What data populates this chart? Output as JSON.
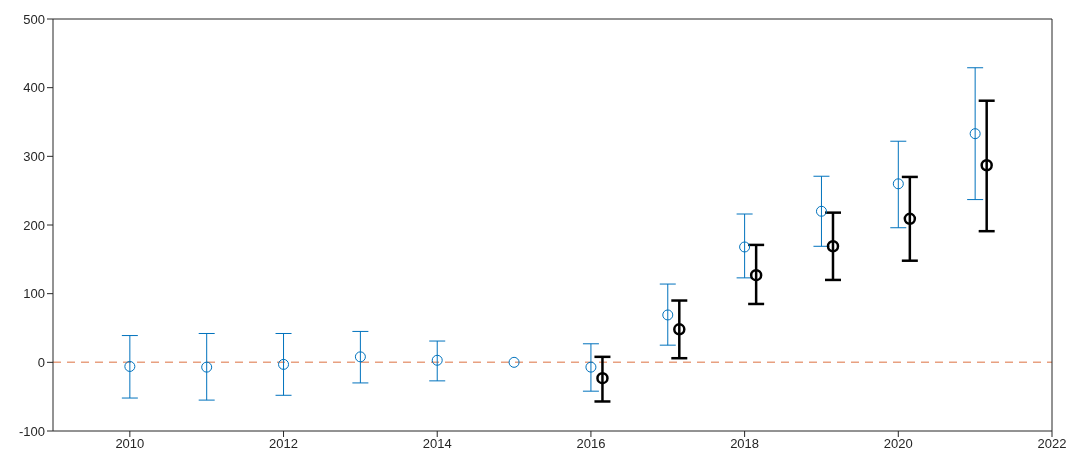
{
  "chart_data": {
    "type": "scatter",
    "xlim": [
      2009,
      2022
    ],
    "xticks": [
      2010,
      2012,
      2014,
      2016,
      2018,
      2020,
      2022
    ],
    "ylim": [
      -100,
      500
    ],
    "yticks": [
      -100,
      0,
      100,
      200,
      300,
      400,
      500
    ],
    "marker": "circle",
    "series": [
      {
        "color": "#0072bd",
        "x": [
          2010,
          2011,
          2012,
          2013,
          2014,
          2015,
          2016,
          2017,
          2018,
          2019,
          2020,
          2021
        ],
        "values": [
          -6,
          -7,
          -3,
          8,
          3,
          0,
          -7,
          69,
          168,
          220,
          260,
          333
        ],
        "errors": [
          [
            -52,
            39
          ],
          [
            -55,
            42
          ],
          [
            -48,
            42
          ],
          [
            -30,
            45
          ],
          [
            -27,
            31
          ],
          null,
          [
            -42,
            27
          ],
          [
            25,
            114
          ],
          [
            123,
            216
          ],
          [
            169,
            271
          ],
          [
            196,
            322
          ],
          [
            237,
            429
          ]
        ]
      },
      {
        "color": "#000000",
        "x": [
          2016.15,
          2017.15,
          2018.15,
          2019.15,
          2020.15,
          2021.15
        ],
        "values": [
          -23,
          48,
          127,
          169,
          209,
          287
        ],
        "errors": [
          [
            -57,
            8
          ],
          [
            6,
            90
          ],
          [
            85,
            171
          ],
          [
            120,
            218
          ],
          [
            148,
            270
          ],
          [
            191,
            381
          ]
        ]
      }
    ],
    "ref_lines": [
      {
        "axis": "y",
        "value": 0,
        "color": "#e8a080",
        "line_style": "dashed"
      }
    ]
  }
}
